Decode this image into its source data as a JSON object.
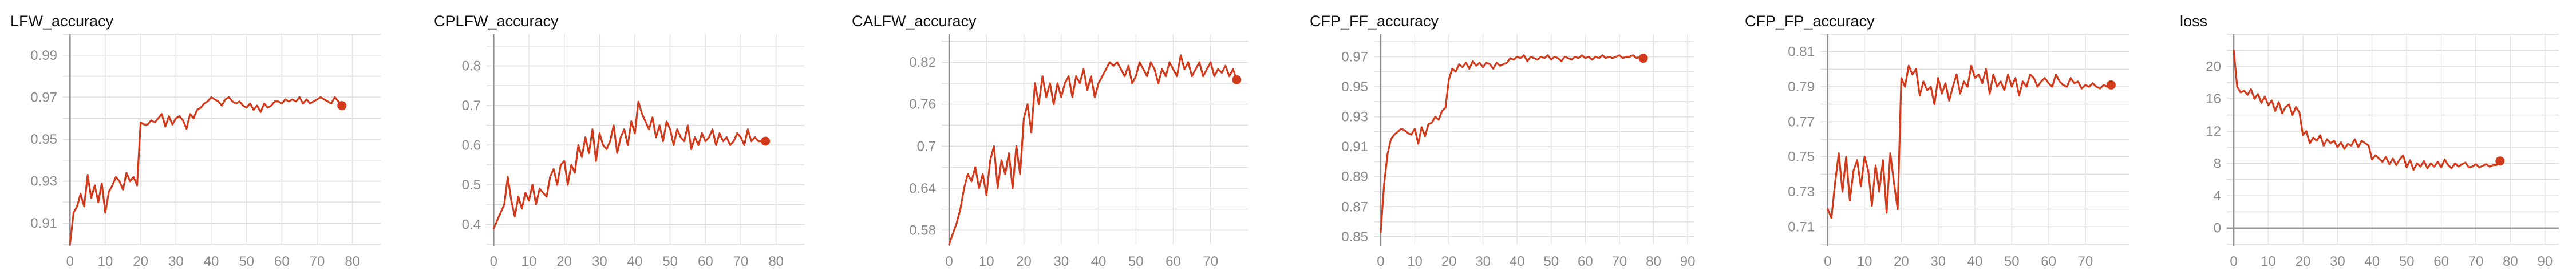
{
  "chart_data": [
    {
      "type": "line",
      "title": "LFW_accuracy",
      "xlim": [
        -2,
        88
      ],
      "ylim": [
        0.9,
        1.0
      ],
      "xticks": [
        0,
        10,
        20,
        30,
        40,
        50,
        60,
        70,
        80
      ],
      "yticks": [
        0.91,
        0.93,
        0.95,
        0.97,
        0.99
      ],
      "ytick_labels": [
        "0.91",
        "0.93",
        "0.95",
        "0.97",
        "0.99"
      ],
      "grid": true,
      "series": [
        {
          "x": [
            0,
            1,
            2,
            3,
            4,
            5,
            6,
            7,
            8,
            9,
            10,
            11,
            12,
            13,
            14,
            15,
            16,
            17,
            18,
            19,
            20,
            21,
            22,
            23,
            24,
            25,
            26,
            27,
            28,
            29,
            30,
            31,
            32,
            33,
            34,
            35,
            36,
            37,
            38,
            39,
            40,
            41,
            42,
            43,
            44,
            45,
            46,
            47,
            48,
            49,
            50,
            51,
            52,
            53,
            54,
            55,
            56,
            57,
            58,
            59,
            60,
            61,
            62,
            63,
            64,
            65,
            66,
            67,
            68,
            69,
            70,
            71,
            72,
            73,
            74,
            75,
            76,
            77
          ],
          "values": [
            0.9,
            0.915,
            0.918,
            0.924,
            0.918,
            0.933,
            0.922,
            0.928,
            0.92,
            0.929,
            0.915,
            0.925,
            0.928,
            0.932,
            0.93,
            0.926,
            0.934,
            0.93,
            0.932,
            0.928,
            0.958,
            0.957,
            0.957,
            0.959,
            0.958,
            0.96,
            0.962,
            0.956,
            0.961,
            0.957,
            0.96,
            0.961,
            0.959,
            0.955,
            0.962,
            0.96,
            0.964,
            0.965,
            0.967,
            0.968,
            0.97,
            0.969,
            0.968,
            0.966,
            0.969,
            0.97,
            0.968,
            0.967,
            0.968,
            0.966,
            0.965,
            0.967,
            0.964,
            0.966,
            0.963,
            0.967,
            0.965,
            0.966,
            0.968,
            0.968,
            0.967,
            0.969,
            0.968,
            0.969,
            0.968,
            0.97,
            0.967,
            0.969,
            0.967,
            0.968,
            0.969,
            0.97,
            0.969,
            0.968,
            0.967,
            0.97,
            0.968,
            0.966
          ]
        }
      ]
    },
    {
      "type": "line",
      "title": "CPLFW_accuracy",
      "xlim": [
        -2,
        88
      ],
      "ylim": [
        0.35,
        0.88
      ],
      "xticks": [
        0,
        10,
        20,
        30,
        40,
        50,
        60,
        70,
        80
      ],
      "yticks": [
        0.4,
        0.5,
        0.6,
        0.7,
        0.8
      ],
      "ytick_labels": [
        "0.4",
        "0.5",
        "0.6",
        "0.7",
        "0.8"
      ],
      "grid": true,
      "series": [
        {
          "x": [
            0,
            1,
            2,
            3,
            4,
            5,
            6,
            7,
            8,
            9,
            10,
            11,
            12,
            13,
            14,
            15,
            16,
            17,
            18,
            19,
            20,
            21,
            22,
            23,
            24,
            25,
            26,
            27,
            28,
            29,
            30,
            31,
            32,
            33,
            34,
            35,
            36,
            37,
            38,
            39,
            40,
            41,
            42,
            43,
            44,
            45,
            46,
            47,
            48,
            49,
            50,
            51,
            52,
            53,
            54,
            55,
            56,
            57,
            58,
            59,
            60,
            61,
            62,
            63,
            64,
            65,
            66,
            67,
            68,
            69,
            70,
            71,
            72,
            73,
            74,
            75,
            76,
            77
          ],
          "values": [
            0.39,
            0.41,
            0.43,
            0.45,
            0.52,
            0.46,
            0.42,
            0.47,
            0.44,
            0.48,
            0.46,
            0.5,
            0.45,
            0.49,
            0.48,
            0.47,
            0.52,
            0.54,
            0.5,
            0.55,
            0.56,
            0.5,
            0.55,
            0.53,
            0.6,
            0.57,
            0.62,
            0.58,
            0.64,
            0.56,
            0.63,
            0.6,
            0.59,
            0.61,
            0.65,
            0.58,
            0.62,
            0.64,
            0.6,
            0.66,
            0.63,
            0.71,
            0.68,
            0.66,
            0.64,
            0.67,
            0.62,
            0.65,
            0.61,
            0.66,
            0.64,
            0.6,
            0.64,
            0.62,
            0.61,
            0.65,
            0.59,
            0.62,
            0.6,
            0.63,
            0.61,
            0.62,
            0.64,
            0.6,
            0.63,
            0.61,
            0.62,
            0.6,
            0.61,
            0.63,
            0.62,
            0.6,
            0.64,
            0.61,
            0.62,
            0.61,
            0.61,
            0.61
          ]
        }
      ]
    },
    {
      "type": "line",
      "title": "CALFW_accuracy",
      "xlim": [
        -2,
        80
      ],
      "ylim": [
        0.56,
        0.86
      ],
      "xticks": [
        0,
        10,
        20,
        30,
        40,
        50,
        60,
        70
      ],
      "yticks": [
        0.58,
        0.64,
        0.7,
        0.76,
        0.82
      ],
      "ytick_labels": [
        "0.58",
        "0.64",
        "0.7",
        "0.76",
        "0.82"
      ],
      "grid": true,
      "series": [
        {
          "x": [
            0,
            1,
            2,
            3,
            4,
            5,
            6,
            7,
            8,
            9,
            10,
            11,
            12,
            13,
            14,
            15,
            16,
            17,
            18,
            19,
            20,
            21,
            22,
            23,
            24,
            25,
            26,
            27,
            28,
            29,
            30,
            31,
            32,
            33,
            34,
            35,
            36,
            37,
            38,
            39,
            40,
            41,
            42,
            43,
            44,
            45,
            46,
            47,
            48,
            49,
            50,
            51,
            52,
            53,
            54,
            55,
            56,
            57,
            58,
            59,
            60,
            61,
            62,
            63,
            64,
            65,
            66,
            67,
            68,
            69,
            70,
            71,
            72,
            73,
            74,
            75,
            76,
            77
          ],
          "values": [
            0.56,
            0.575,
            0.59,
            0.61,
            0.64,
            0.66,
            0.65,
            0.67,
            0.64,
            0.66,
            0.63,
            0.68,
            0.7,
            0.64,
            0.68,
            0.66,
            0.69,
            0.64,
            0.7,
            0.66,
            0.74,
            0.76,
            0.72,
            0.79,
            0.76,
            0.8,
            0.77,
            0.79,
            0.76,
            0.79,
            0.77,
            0.79,
            0.8,
            0.77,
            0.8,
            0.79,
            0.81,
            0.78,
            0.8,
            0.77,
            0.79,
            0.8,
            0.81,
            0.82,
            0.815,
            0.82,
            0.81,
            0.8,
            0.815,
            0.79,
            0.8,
            0.82,
            0.81,
            0.8,
            0.82,
            0.81,
            0.79,
            0.81,
            0.8,
            0.82,
            0.81,
            0.8,
            0.83,
            0.81,
            0.82,
            0.8,
            0.81,
            0.82,
            0.8,
            0.81,
            0.82,
            0.8,
            0.81,
            0.805,
            0.815,
            0.8,
            0.81,
            0.795
          ]
        }
      ]
    },
    {
      "type": "line",
      "title": "CFP_FF_accuracy",
      "xlim": [
        -2,
        92
      ],
      "ylim": [
        0.845,
        0.985
      ],
      "xticks": [
        0,
        10,
        20,
        30,
        40,
        50,
        60,
        70,
        80,
        90
      ],
      "yticks": [
        0.85,
        0.87,
        0.89,
        0.91,
        0.93,
        0.95,
        0.97
      ],
      "ytick_labels": [
        "0.85",
        "0.87",
        "0.89",
        "0.91",
        "0.93",
        "0.95",
        "0.97"
      ],
      "grid": true,
      "series": [
        {
          "x": [
            0,
            1,
            2,
            3,
            4,
            5,
            6,
            7,
            8,
            9,
            10,
            11,
            12,
            13,
            14,
            15,
            16,
            17,
            18,
            19,
            20,
            21,
            22,
            23,
            24,
            25,
            26,
            27,
            28,
            29,
            30,
            31,
            32,
            33,
            34,
            35,
            36,
            37,
            38,
            39,
            40,
            41,
            42,
            43,
            44,
            45,
            46,
            47,
            48,
            49,
            50,
            51,
            52,
            53,
            54,
            55,
            56,
            57,
            58,
            59,
            60,
            61,
            62,
            63,
            64,
            65,
            66,
            67,
            68,
            69,
            70,
            71,
            72,
            73,
            74,
            75,
            76,
            77
          ],
          "values": [
            0.853,
            0.885,
            0.905,
            0.915,
            0.918,
            0.92,
            0.922,
            0.921,
            0.919,
            0.918,
            0.922,
            0.912,
            0.923,
            0.917,
            0.925,
            0.926,
            0.93,
            0.928,
            0.934,
            0.936,
            0.955,
            0.962,
            0.96,
            0.965,
            0.963,
            0.966,
            0.962,
            0.967,
            0.964,
            0.966,
            0.963,
            0.966,
            0.965,
            0.962,
            0.966,
            0.964,
            0.965,
            0.966,
            0.969,
            0.968,
            0.97,
            0.969,
            0.971,
            0.967,
            0.97,
            0.969,
            0.968,
            0.97,
            0.969,
            0.971,
            0.968,
            0.97,
            0.969,
            0.967,
            0.97,
            0.969,
            0.968,
            0.97,
            0.969,
            0.971,
            0.969,
            0.97,
            0.968,
            0.97,
            0.969,
            0.971,
            0.969,
            0.97,
            0.969,
            0.97,
            0.971,
            0.969,
            0.97,
            0.97,
            0.971,
            0.969,
            0.97,
            0.969
          ]
        }
      ]
    },
    {
      "type": "line",
      "title": "CFP_FP_accuracy",
      "xlim": [
        -2,
        82
      ],
      "ylim": [
        0.7,
        0.82
      ],
      "xticks": [
        0,
        10,
        20,
        30,
        40,
        50,
        60,
        70
      ],
      "yticks": [
        0.71,
        0.73,
        0.75,
        0.77,
        0.79,
        0.81
      ],
      "ytick_labels": [
        "0.71",
        "0.73",
        "0.75",
        "0.77",
        "0.79",
        "0.81"
      ],
      "grid": true,
      "series": [
        {
          "x": [
            0,
            1,
            2,
            3,
            4,
            5,
            6,
            7,
            8,
            9,
            10,
            11,
            12,
            13,
            14,
            15,
            16,
            17,
            18,
            19,
            20,
            21,
            22,
            23,
            24,
            25,
            26,
            27,
            28,
            29,
            30,
            31,
            32,
            33,
            34,
            35,
            36,
            37,
            38,
            39,
            40,
            41,
            42,
            43,
            44,
            45,
            46,
            47,
            48,
            49,
            50,
            51,
            52,
            53,
            54,
            55,
            56,
            57,
            58,
            59,
            60,
            61,
            62,
            63,
            64,
            65,
            66,
            67,
            68,
            69,
            70,
            71,
            72,
            73,
            74,
            75,
            76,
            77
          ],
          "values": [
            0.72,
            0.715,
            0.735,
            0.752,
            0.73,
            0.75,
            0.725,
            0.742,
            0.748,
            0.733,
            0.75,
            0.742,
            0.722,
            0.745,
            0.73,
            0.748,
            0.718,
            0.752,
            0.735,
            0.72,
            0.795,
            0.79,
            0.802,
            0.797,
            0.8,
            0.785,
            0.793,
            0.788,
            0.79,
            0.78,
            0.795,
            0.786,
            0.792,
            0.782,
            0.79,
            0.797,
            0.786,
            0.793,
            0.79,
            0.802,
            0.795,
            0.797,
            0.792,
            0.8,
            0.786,
            0.797,
            0.79,
            0.793,
            0.788,
            0.797,
            0.79,
            0.795,
            0.785,
            0.793,
            0.79,
            0.797,
            0.795,
            0.79,
            0.793,
            0.795,
            0.792,
            0.79,
            0.797,
            0.793,
            0.791,
            0.79,
            0.795,
            0.792,
            0.793,
            0.789,
            0.791,
            0.79,
            0.792,
            0.79,
            0.789,
            0.791,
            0.79,
            0.791
          ]
        }
      ]
    },
    {
      "type": "line",
      "title": "loss",
      "xlim": [
        -2,
        94
      ],
      "ylim": [
        -2,
        24
      ],
      "xticks": [
        0,
        10,
        20,
        30,
        40,
        50,
        60,
        70,
        80,
        90
      ],
      "yticks": [
        0,
        4,
        8,
        12,
        16,
        20
      ],
      "ytick_labels": [
        "0",
        "4",
        "8",
        "12",
        "16",
        "20"
      ],
      "grid": true,
      "series": [
        {
          "x": [
            0,
            1,
            2,
            3,
            4,
            5,
            6,
            7,
            8,
            9,
            10,
            11,
            12,
            13,
            14,
            15,
            16,
            17,
            18,
            19,
            20,
            21,
            22,
            23,
            24,
            25,
            26,
            27,
            28,
            29,
            30,
            31,
            32,
            33,
            34,
            35,
            36,
            37,
            38,
            39,
            40,
            41,
            42,
            43,
            44,
            45,
            46,
            47,
            48,
            49,
            50,
            51,
            52,
            53,
            54,
            55,
            56,
            57,
            58,
            59,
            60,
            61,
            62,
            63,
            64,
            65,
            66,
            67,
            68,
            69,
            70,
            71,
            72,
            73,
            74,
            75,
            76,
            77
          ],
          "values": [
            22.0,
            17.5,
            16.8,
            17.0,
            16.5,
            17.2,
            16.0,
            16.6,
            15.5,
            16.3,
            15.2,
            15.8,
            14.5,
            15.6,
            14.2,
            15.0,
            15.3,
            14.0,
            15.0,
            14.3,
            11.5,
            12.0,
            10.5,
            11.2,
            10.8,
            11.5,
            10.2,
            11.0,
            10.5,
            10.8,
            10.0,
            10.6,
            9.8,
            10.4,
            10.2,
            11.0,
            10.0,
            10.8,
            10.5,
            10.2,
            8.5,
            9.0,
            8.6,
            8.2,
            8.8,
            7.9,
            8.6,
            7.8,
            8.5,
            9.0,
            7.5,
            8.4,
            7.2,
            8.0,
            7.6,
            8.3,
            7.4,
            8.0,
            7.6,
            8.2,
            7.5,
            8.5,
            7.8,
            7.4,
            8.0,
            7.6,
            7.9,
            8.1,
            7.5,
            7.6,
            7.9,
            7.5,
            7.7,
            7.9,
            7.6,
            7.8,
            7.8,
            8.3
          ]
        }
      ]
    }
  ]
}
